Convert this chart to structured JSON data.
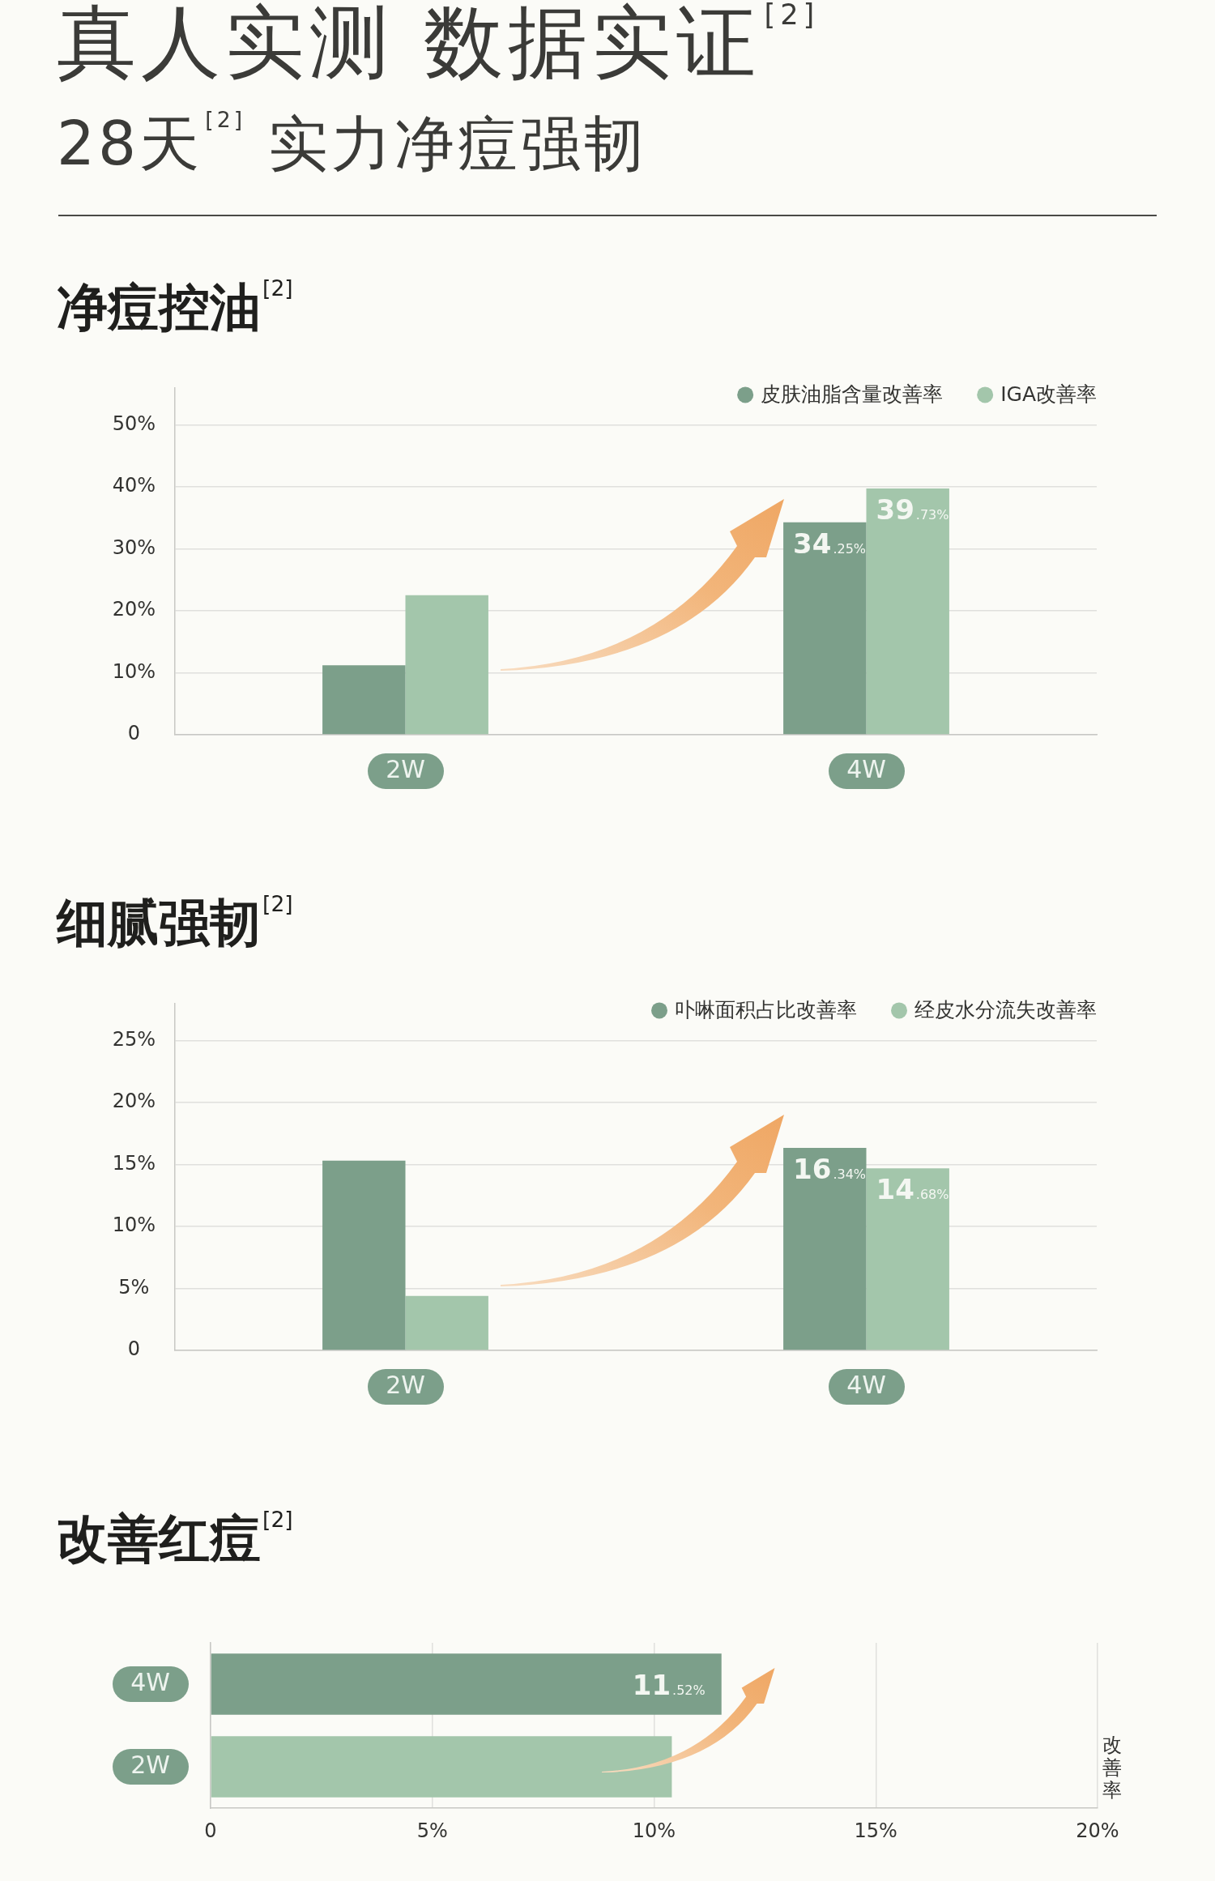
{
  "chart_data": [
    {
      "type": "other",
      "title": "真人实测 数据实证$^{[2]}$",
      "subtitle": "28天$^{[2]}$ 实力净痘强韧"
    },
    {
      "type": "bar",
      "title": "净痘控油$^{[2]}$",
      "categories": [
        "2W",
        "4W"
      ],
      "series": [
        {
          "name": "皮肤油脂含量改善率",
          "color": "#7c9f8a",
          "values": [
            11.2,
            34.25
          ],
          "value_labels": [
            null,
            "34.25%"
          ]
        },
        {
          "name": "IGA改善率",
          "color": "#a3c6ab",
          "values": [
            22.5,
            39.73
          ],
          "value_labels": [
            null,
            "39.73%"
          ]
        }
      ],
      "ylim": [
        0,
        56
      ],
      "yticks": [
        0,
        {
          "value": 10,
          "label": "10%"
        },
        {
          "value": 20,
          "label": "20%"
        },
        {
          "value": 30,
          "label": "30%"
        },
        {
          "value": 40,
          "label": "40%"
        },
        {
          "value": 50,
          "label": "50%"
        }
      ],
      "grid": "y",
      "legend": "top right"
    },
    {
      "type": "bar",
      "title": "细腻强韧$^{[2]}$",
      "categories": [
        "2W",
        "4W"
      ],
      "series": [
        {
          "name": "卟啉面积占比改善率",
          "color": "#7c9f8a",
          "values": [
            15.3,
            16.34
          ],
          "value_labels": [
            null,
            "16.34%"
          ]
        },
        {
          "name": "经皮水分流失改善率",
          "color": "#a3c6ab",
          "values": [
            4.4,
            14.68
          ],
          "value_labels": [
            null,
            "14.68%"
          ]
        }
      ],
      "ylim": [
        0,
        28
      ],
      "yticks": [
        0,
        {
          "value": 5,
          "label": "5%"
        },
        {
          "value": 10,
          "label": "10%"
        },
        {
          "value": 15,
          "label": "15%"
        },
        {
          "value": 20,
          "label": "20%"
        },
        {
          "value": 25,
          "label": "25%"
        }
      ],
      "grid": "y",
      "legend": "top right"
    },
    {
      "type": "bar",
      "title": "改善红痘$^{[2]}$",
      "orientation": "horizontal",
      "categories": [
        "4W",
        "2W"
      ],
      "values": [
        11.52,
        10.4
      ],
      "colors": [
        "#7c9f8a",
        "#a3c6ab"
      ],
      "value_labels": [
        "11.52%",
        null
      ],
      "xlim": [
        0,
        20
      ],
      "xticks": [
        0,
        {
          "value": 5,
          "label": "5%"
        },
        {
          "value": 10,
          "label": "10%"
        },
        {
          "value": 15,
          "label": "15%"
        },
        {
          "value": 20,
          "label": "20%"
        }
      ],
      "xlabel": "改善率",
      "grid": "x"
    }
  ]
}
